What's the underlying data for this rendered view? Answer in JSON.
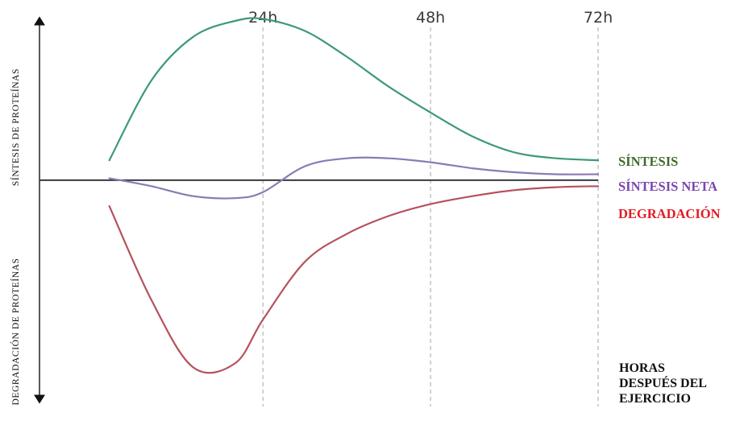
{
  "chart_data": {
    "type": "line",
    "x_ticks": [
      "24h",
      "48h",
      "72h"
    ],
    "xlabel": [
      "HORAS",
      "DESPUÉS DEL",
      "EJERCICIO"
    ],
    "ylabel_upper": "SÍNTESIS DE PROTEÍNAS",
    "ylabel_lower": "DEGRADACIÓN DE PROTEÍNAS",
    "xlim": [
      -8,
      72
    ],
    "ylim": [
      -1.1,
      0.8
    ],
    "grid": "vertical dashed lines at 24h, 48h, 72h",
    "legend_position": "right",
    "series": [
      {
        "name": "SÍNTESIS",
        "color": "#3d9a73",
        "label_color": "#3f6b2c",
        "x": [
          2,
          8,
          14,
          20,
          24,
          30,
          36,
          42,
          48,
          54,
          60,
          66,
          72
        ],
        "y": [
          0.1,
          0.5,
          0.72,
          0.8,
          0.81,
          0.75,
          0.62,
          0.47,
          0.34,
          0.22,
          0.14,
          0.11,
          0.1
        ]
      },
      {
        "name": "SÍNTESIS NETA",
        "color": "#8a7bb4",
        "label_color": "#7a45b0",
        "x": [
          2,
          8,
          14,
          20,
          24,
          30,
          36,
          42,
          48,
          54,
          60,
          66,
          72
        ],
        "y": [
          0.01,
          -0.03,
          -0.08,
          -0.09,
          -0.06,
          0.07,
          0.11,
          0.11,
          0.09,
          0.06,
          0.04,
          0.03,
          0.03
        ]
      },
      {
        "name": "DEGRADACIÓN",
        "color": "#b5525c",
        "label_color": "#e21b23",
        "x": [
          2,
          8,
          14,
          20,
          24,
          30,
          36,
          42,
          48,
          54,
          60,
          66,
          72
        ],
        "y": [
          -0.13,
          -0.6,
          -0.94,
          -0.92,
          -0.7,
          -0.41,
          -0.27,
          -0.18,
          -0.12,
          -0.08,
          -0.05,
          -0.035,
          -0.03
        ]
      }
    ]
  }
}
